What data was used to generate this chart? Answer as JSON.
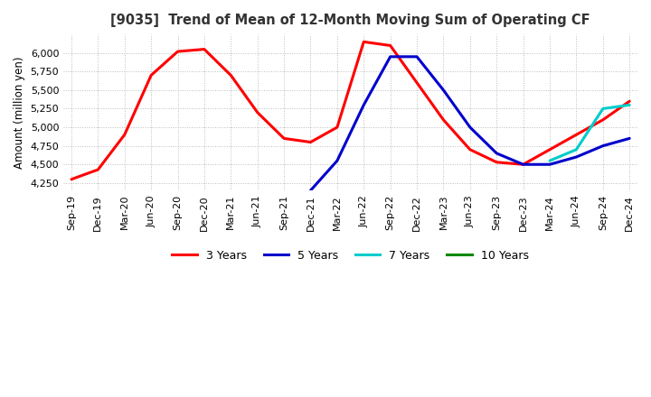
{
  "title": "[9035]  Trend of Mean of 12-Month Moving Sum of Operating CF",
  "ylabel": "Amount (million yen)",
  "background_color": "#ffffff",
  "grid_color": "#bbbbbb",
  "legend_labels": [
    "3 Years",
    "5 Years",
    "7 Years",
    "10 Years"
  ],
  "legend_colors": [
    "#ff0000",
    "#0000cc",
    "#00cccc",
    "#008800"
  ],
  "x_labels": [
    "Sep-19",
    "Dec-19",
    "Mar-20",
    "Jun-20",
    "Sep-20",
    "Dec-20",
    "Mar-21",
    "Jun-21",
    "Sep-21",
    "Dec-21",
    "Mar-22",
    "Jun-22",
    "Sep-22",
    "Dec-22",
    "Mar-23",
    "Jun-23",
    "Sep-23",
    "Dec-23",
    "Mar-24",
    "Jun-24",
    "Sep-24",
    "Dec-24"
  ],
  "ylim": [
    4150,
    6250
  ],
  "yticks": [
    4250,
    4500,
    4750,
    5000,
    5250,
    5500,
    5750,
    6000
  ],
  "line3y": [
    4300,
    4430,
    4900,
    5700,
    6020,
    6050,
    5700,
    5200,
    4850,
    4800,
    5000,
    6150,
    6100,
    5600,
    5100,
    4700,
    4530,
    4500,
    4700,
    4900,
    5100,
    5350
  ],
  "line5y": [
    null,
    null,
    null,
    null,
    null,
    null,
    null,
    null,
    null,
    4150,
    4550,
    5300,
    5950,
    5950,
    5500,
    5000,
    4650,
    4500,
    4500,
    4600,
    4750,
    4850
  ],
  "line7y": [
    null,
    null,
    null,
    null,
    null,
    null,
    null,
    null,
    null,
    null,
    null,
    null,
    null,
    null,
    null,
    null,
    null,
    null,
    4550,
    4700,
    5250,
    5300
  ],
  "line10y": [
    null,
    null,
    null,
    null,
    null,
    null,
    null,
    null,
    null,
    null,
    null,
    null,
    null,
    null,
    null,
    null,
    null,
    null,
    null,
    null,
    null,
    null
  ]
}
